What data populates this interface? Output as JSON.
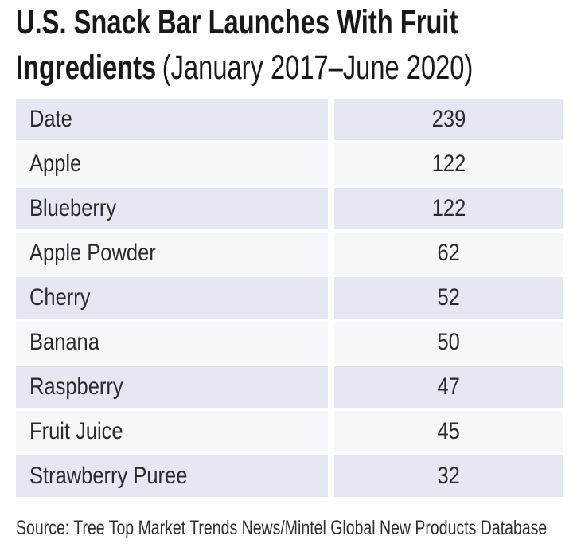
{
  "title": {
    "line1": "U.S. Snack Bar Launches With Fruit",
    "line2_bold": "Ingredients",
    "line2_regular": "(January 2017–June 2020)"
  },
  "table": {
    "rows": [
      {
        "label": "Date",
        "value": "239"
      },
      {
        "label": "Apple",
        "value": "122"
      },
      {
        "label": "Blueberry",
        "value": "122"
      },
      {
        "label": "Apple Powder",
        "value": "62"
      },
      {
        "label": "Cherry",
        "value": "52"
      },
      {
        "label": "Banana",
        "value": "50"
      },
      {
        "label": "Raspberry",
        "value": "47"
      },
      {
        "label": "Fruit Juice",
        "value": "45"
      },
      {
        "label": "Strawberry Puree",
        "value": "32"
      }
    ]
  },
  "source": "Source: Tree Top Market Trends News/Mintel Global New Products Database",
  "colors": {
    "row_dark": "#e5e8f3",
    "row_light": "#f6f7fb",
    "title_text": "#191919",
    "body_text": "#2b2b2b"
  },
  "chart_data": {
    "type": "table",
    "title": "U.S. Snack Bar Launches With Fruit Ingredients",
    "subtitle": "(January 2017–June 2020)",
    "categories": [
      "Date",
      "Apple",
      "Blueberry",
      "Apple Powder",
      "Cherry",
      "Banana",
      "Raspberry",
      "Fruit Juice",
      "Strawberry Puree"
    ],
    "values": [
      239,
      122,
      122,
      62,
      52,
      50,
      47,
      45,
      32
    ],
    "source": "Source: Tree Top Market Trends News/Mintel Global New Products Database"
  }
}
